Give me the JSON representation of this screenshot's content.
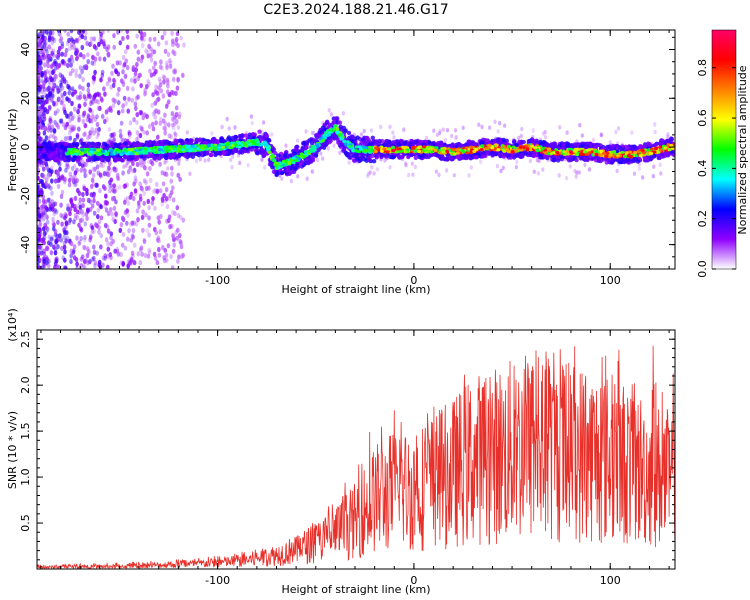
{
  "title": "C2E3.2024.188.21.46.G17",
  "colors": {
    "snr_line": "#e8302a",
    "colorbar_stops": [
      "#ffffff",
      "#8f00ff",
      "#0000ff",
      "#00ffff",
      "#00ff00",
      "#ffff00",
      "#ff8000",
      "#ff0000",
      "#ff0066"
    ]
  },
  "chart_data": [
    {
      "type": "heatmap",
      "title": "C2E3.2024.188.21.46.G17",
      "xlabel": "Height of straight line (km)",
      "ylabel": "Frequency (Hz)",
      "xlim": [
        -192,
        133
      ],
      "ylim": [
        -50,
        48
      ],
      "x_ticks": [
        -100,
        0,
        100
      ],
      "y_ticks": [
        -40,
        -20,
        0,
        20,
        40
      ],
      "grid": false,
      "colorbar": {
        "label": "Normalized spectral amplitude",
        "range": [
          0.0,
          0.95
        ],
        "ticks": [
          0.0,
          0.2,
          0.4,
          0.6,
          0.8
        ]
      },
      "ridge": {
        "x": [
          -175,
          -150,
          -125,
          -100,
          -90,
          -80,
          -75,
          -70,
          -60,
          -50,
          -45,
          -40,
          -35,
          -30,
          -20,
          -10,
          0,
          10,
          20,
          30,
          40,
          50,
          60,
          70,
          80,
          90,
          100,
          110,
          120,
          130
        ],
        "frequency": [
          -2,
          -2,
          -1,
          0,
          1,
          2,
          1,
          -8,
          -5,
          0,
          5,
          8,
          2,
          -1,
          -1,
          -1,
          -1,
          -1,
          -2,
          -1,
          0,
          -1,
          0,
          -2,
          -2,
          -2,
          -3,
          -3,
          -2,
          0
        ]
      }
    },
    {
      "type": "line",
      "title": "",
      "xlabel": "Height of straight line (km)",
      "ylabel": "SNR (10 * v/v)",
      "y_multiplier": "(x10⁴)",
      "xlim": [
        -192,
        133
      ],
      "ylim": [
        0,
        2.6
      ],
      "x_ticks": [
        -100,
        0,
        100
      ],
      "y_ticks": [
        0.5,
        1.0,
        1.5,
        2.0,
        2.5
      ],
      "grid": false,
      "envelope": {
        "x": [
          -192,
          -150,
          -110,
          -90,
          -80,
          -70,
          -60,
          -50,
          -40,
          -30,
          -20,
          -10,
          0,
          10,
          20,
          30,
          40,
          50,
          60,
          70,
          80,
          90,
          100,
          110,
          120,
          133
        ],
        "y_mean": [
          0.02,
          0.03,
          0.06,
          0.09,
          0.12,
          0.16,
          0.22,
          0.3,
          0.4,
          0.55,
          0.8,
          0.9,
          0.9,
          1.0,
          1.1,
          1.25,
          1.3,
          1.35,
          1.35,
          1.35,
          1.35,
          1.3,
          1.25,
          1.2,
          1.1,
          1.0
        ],
        "y_max": [
          0.05,
          0.07,
          0.12,
          0.18,
          0.22,
          0.28,
          0.35,
          0.55,
          0.8,
          1.1,
          1.7,
          1.75,
          1.6,
          1.95,
          2.05,
          2.2,
          2.2,
          2.4,
          2.45,
          2.45,
          2.6,
          2.35,
          2.4,
          2.4,
          2.5,
          2.25
        ]
      }
    }
  ]
}
